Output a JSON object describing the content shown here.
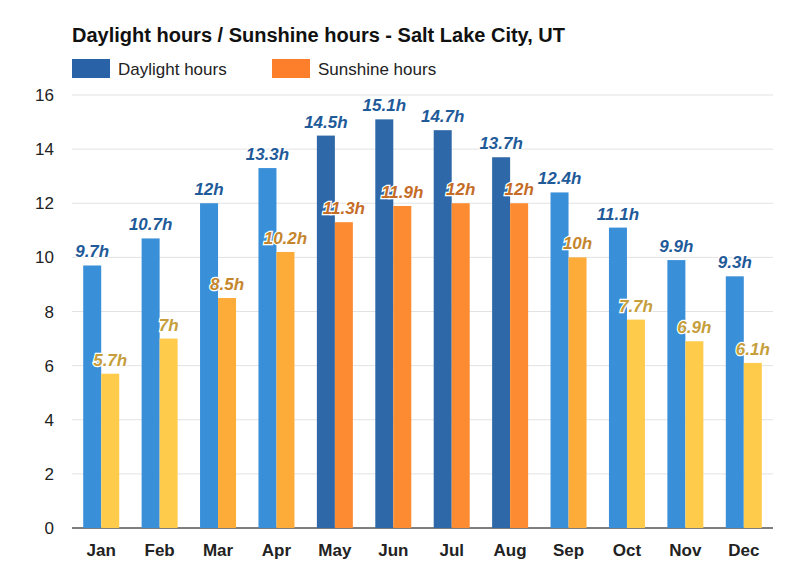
{
  "chart_data": {
    "type": "bar",
    "title": "Daylight hours / Sunshine hours - Salt Lake City, UT",
    "categories": [
      "Jan",
      "Feb",
      "Mar",
      "Apr",
      "May",
      "Jun",
      "Jul",
      "Aug",
      "Sep",
      "Oct",
      "Nov",
      "Dec"
    ],
    "series": [
      {
        "name": "Daylight hours",
        "color": "#2a62a8",
        "colors": [
          "#3a8fd9",
          "#3a8fd9",
          "#3a8fd9",
          "#3a8fd9",
          "#2f68a8",
          "#2f68a8",
          "#2f68a8",
          "#2f68a8",
          "#3a8fd9",
          "#3a8fd9",
          "#3a8fd9",
          "#3a8fd9"
        ],
        "values": [
          9.7,
          10.7,
          12,
          13.3,
          14.5,
          15.1,
          14.7,
          13.7,
          12.4,
          11.1,
          9.9,
          9.3
        ],
        "value_labels": [
          "9.7h",
          "10.7h",
          "12h",
          "13.3h",
          "14.5h",
          "15.1h",
          "14.7h",
          "13.7h",
          "12.4h",
          "11.1h",
          "9.9h",
          "9.3h"
        ]
      },
      {
        "name": "Sunshine hours",
        "color": "#fd7f2c",
        "colors": [
          "#fecb4b",
          "#fecb4b",
          "#fdac3a",
          "#fdac3a",
          "#fd8b32",
          "#fd8b32",
          "#fd8b32",
          "#fd8b32",
          "#fdac3a",
          "#fecb4b",
          "#fecb4b",
          "#fecb4b"
        ],
        "values": [
          5.7,
          7,
          8.5,
          10.2,
          11.3,
          11.9,
          12,
          12,
          10,
          7.7,
          6.9,
          6.1
        ],
        "value_labels": [
          "5.7h",
          "7h",
          "8.5h",
          "10.2h",
          "11.3h",
          "11.9h",
          "12h",
          "12h",
          "10h",
          "7.7h",
          "6.9h",
          "6.1h"
        ]
      }
    ],
    "ylim": [
      0,
      16
    ],
    "yticks": [
      0,
      2,
      4,
      6,
      8,
      10,
      12,
      14,
      16
    ],
    "grid": true,
    "legend": "top-left",
    "data_labels": true
  }
}
